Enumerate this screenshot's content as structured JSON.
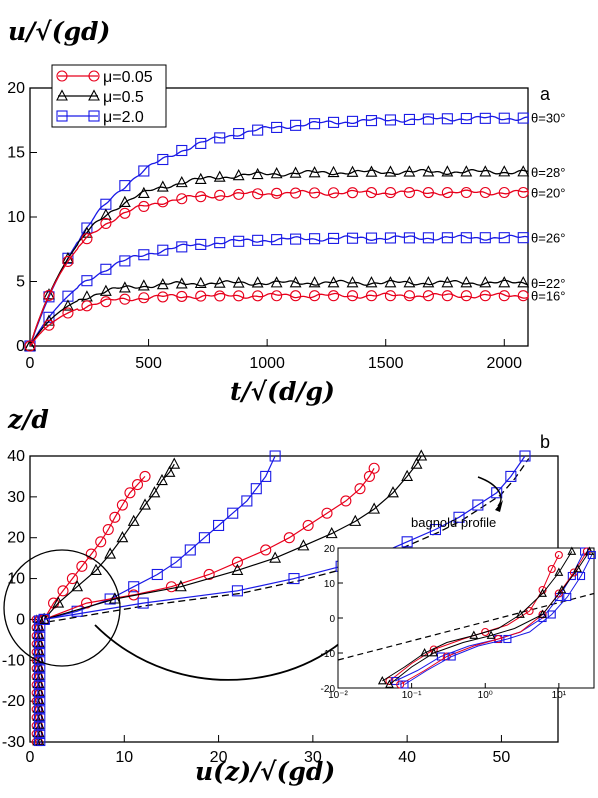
{
  "colors": {
    "red": "#e8001c",
    "black": "#000000",
    "blue": "#1a1ae6",
    "dash": "#000000"
  },
  "chart_data": [
    {
      "type": "line",
      "panel_label": "a",
      "ylabel": "u/√(gd)",
      "xlabel": "t/√(d/g)",
      "xlim": [
        0,
        2100
      ],
      "ylim": [
        0,
        20
      ],
      "x_ticks": [
        0,
        500,
        1000,
        1500,
        2000
      ],
      "y_ticks": [
        0,
        5,
        10,
        15,
        20
      ],
      "legend_position": "top-left",
      "legend": [
        {
          "label": "μ=0.05",
          "color": "red",
          "marker": "circle"
        },
        {
          "label": "μ=0.5",
          "color": "black",
          "marker": "triangle"
        },
        {
          "label": "μ=2.0",
          "color": "blue",
          "marker": "square"
        }
      ],
      "series": [
        {
          "angle": "θ=30°",
          "color": "blue",
          "marker": "square",
          "plateau": 17.7,
          "tau": 330
        },
        {
          "angle": "θ=28°",
          "color": "black",
          "marker": "triangle",
          "plateau": 13.5,
          "tau": 230
        },
        {
          "angle": "θ=20°",
          "color": "red",
          "marker": "circle",
          "plateau": 11.9,
          "tau": 200
        },
        {
          "angle": "θ=26°",
          "color": "blue",
          "marker": "square",
          "plateau": 8.4,
          "tau": 260
        },
        {
          "angle": "θ=22°",
          "color": "black",
          "marker": "triangle",
          "plateau": 4.9,
          "tau": 160
        },
        {
          "angle": "θ=16°",
          "color": "red",
          "marker": "circle",
          "plateau": 3.9,
          "tau": 150
        }
      ]
    },
    {
      "type": "line",
      "panel_label": "b",
      "ylabel": "z/d",
      "xlabel": "u(z)/√(gd)",
      "xlim": [
        0,
        56
      ],
      "ylim": [
        -30,
        40
      ],
      "x_ticks": [
        0,
        10,
        20,
        30,
        40,
        50
      ],
      "y_ticks": [
        -30,
        -20,
        -10,
        0,
        10,
        20,
        30,
        40
      ],
      "annotation": "bagnold profile",
      "series": [
        {
          "color": "red",
          "marker": "circle",
          "points": [
            [
              1.5,
              0
            ],
            [
              2.5,
              4
            ],
            [
              3.5,
              7
            ],
            [
              4.5,
              10
            ],
            [
              5.5,
              13
            ],
            [
              6.5,
              16
            ],
            [
              7.5,
              19
            ],
            [
              8.3,
              22
            ],
            [
              9.0,
              25
            ],
            [
              9.8,
              28
            ],
            [
              10.6,
              31
            ],
            [
              11.4,
              33
            ],
            [
              12.2,
              35
            ]
          ]
        },
        {
          "color": "black",
          "marker": "triangle",
          "points": [
            [
              1.5,
              0
            ],
            [
              3,
              4
            ],
            [
              5,
              8
            ],
            [
              7,
              12
            ],
            [
              8.5,
              16
            ],
            [
              9.8,
              20
            ],
            [
              11,
              24
            ],
            [
              12.2,
              28
            ],
            [
              13.2,
              31
            ],
            [
              14,
              34
            ],
            [
              14.8,
              36
            ],
            [
              15.3,
              38
            ]
          ]
        },
        {
          "color": "blue",
          "marker": "square",
          "points": [
            [
              1.5,
              0
            ],
            [
              5,
              2
            ],
            [
              8.5,
              5
            ],
            [
              11,
              8
            ],
            [
              13.5,
              11
            ],
            [
              15.5,
              14
            ],
            [
              17,
              17
            ],
            [
              18.5,
              20
            ],
            [
              20,
              23
            ],
            [
              21.5,
              26
            ],
            [
              23,
              29
            ],
            [
              24,
              32
            ],
            [
              25,
              35
            ],
            [
              26,
              40
            ]
          ]
        },
        {
          "color": "red",
          "marker": "circle",
          "points": [
            [
              1.5,
              0
            ],
            [
              6,
              4
            ],
            [
              11,
              6
            ],
            [
              15,
              8
            ],
            [
              19,
              11
            ],
            [
              22,
              14
            ],
            [
              25,
              17
            ],
            [
              27.5,
              20
            ],
            [
              29.5,
              23
            ],
            [
              31.5,
              26
            ],
            [
              33.5,
              29
            ],
            [
              35,
              32
            ],
            [
              36,
              35
            ],
            [
              36.5,
              37
            ]
          ]
        },
        {
          "color": "black",
          "marker": "triangle",
          "points": [
            [
              1.5,
              0
            ],
            [
              9,
              5
            ],
            [
              16,
              8
            ],
            [
              22,
              12
            ],
            [
              26,
              15
            ],
            [
              29,
              18
            ],
            [
              32,
              21
            ],
            [
              34.5,
              24
            ],
            [
              36.5,
              27
            ],
            [
              38.5,
              31
            ],
            [
              40,
              35
            ],
            [
              41,
              38
            ],
            [
              41.5,
              40
            ]
          ]
        },
        {
          "color": "blue",
          "marker": "square",
          "points": [
            [
              1.5,
              0
            ],
            [
              12,
              4
            ],
            [
              22,
              7
            ],
            [
              28,
              10
            ],
            [
              33,
              13
            ],
            [
              37,
              16
            ],
            [
              40,
              19
            ],
            [
              43,
              22
            ],
            [
              45.5,
              25
            ],
            [
              47.5,
              28
            ],
            [
              49.5,
              31
            ],
            [
              51,
              35
            ],
            [
              52.5,
              40
            ]
          ]
        }
      ],
      "inset": {
        "xscale": "log",
        "xlim": [
          0.01,
          30
        ],
        "ylim": [
          -20,
          20
        ],
        "x_ticks": [
          "10⁻²",
          "10⁻¹",
          "10⁰",
          "10¹"
        ],
        "y_ticks": [
          -20,
          -10,
          0,
          10,
          20
        ]
      }
    }
  ]
}
